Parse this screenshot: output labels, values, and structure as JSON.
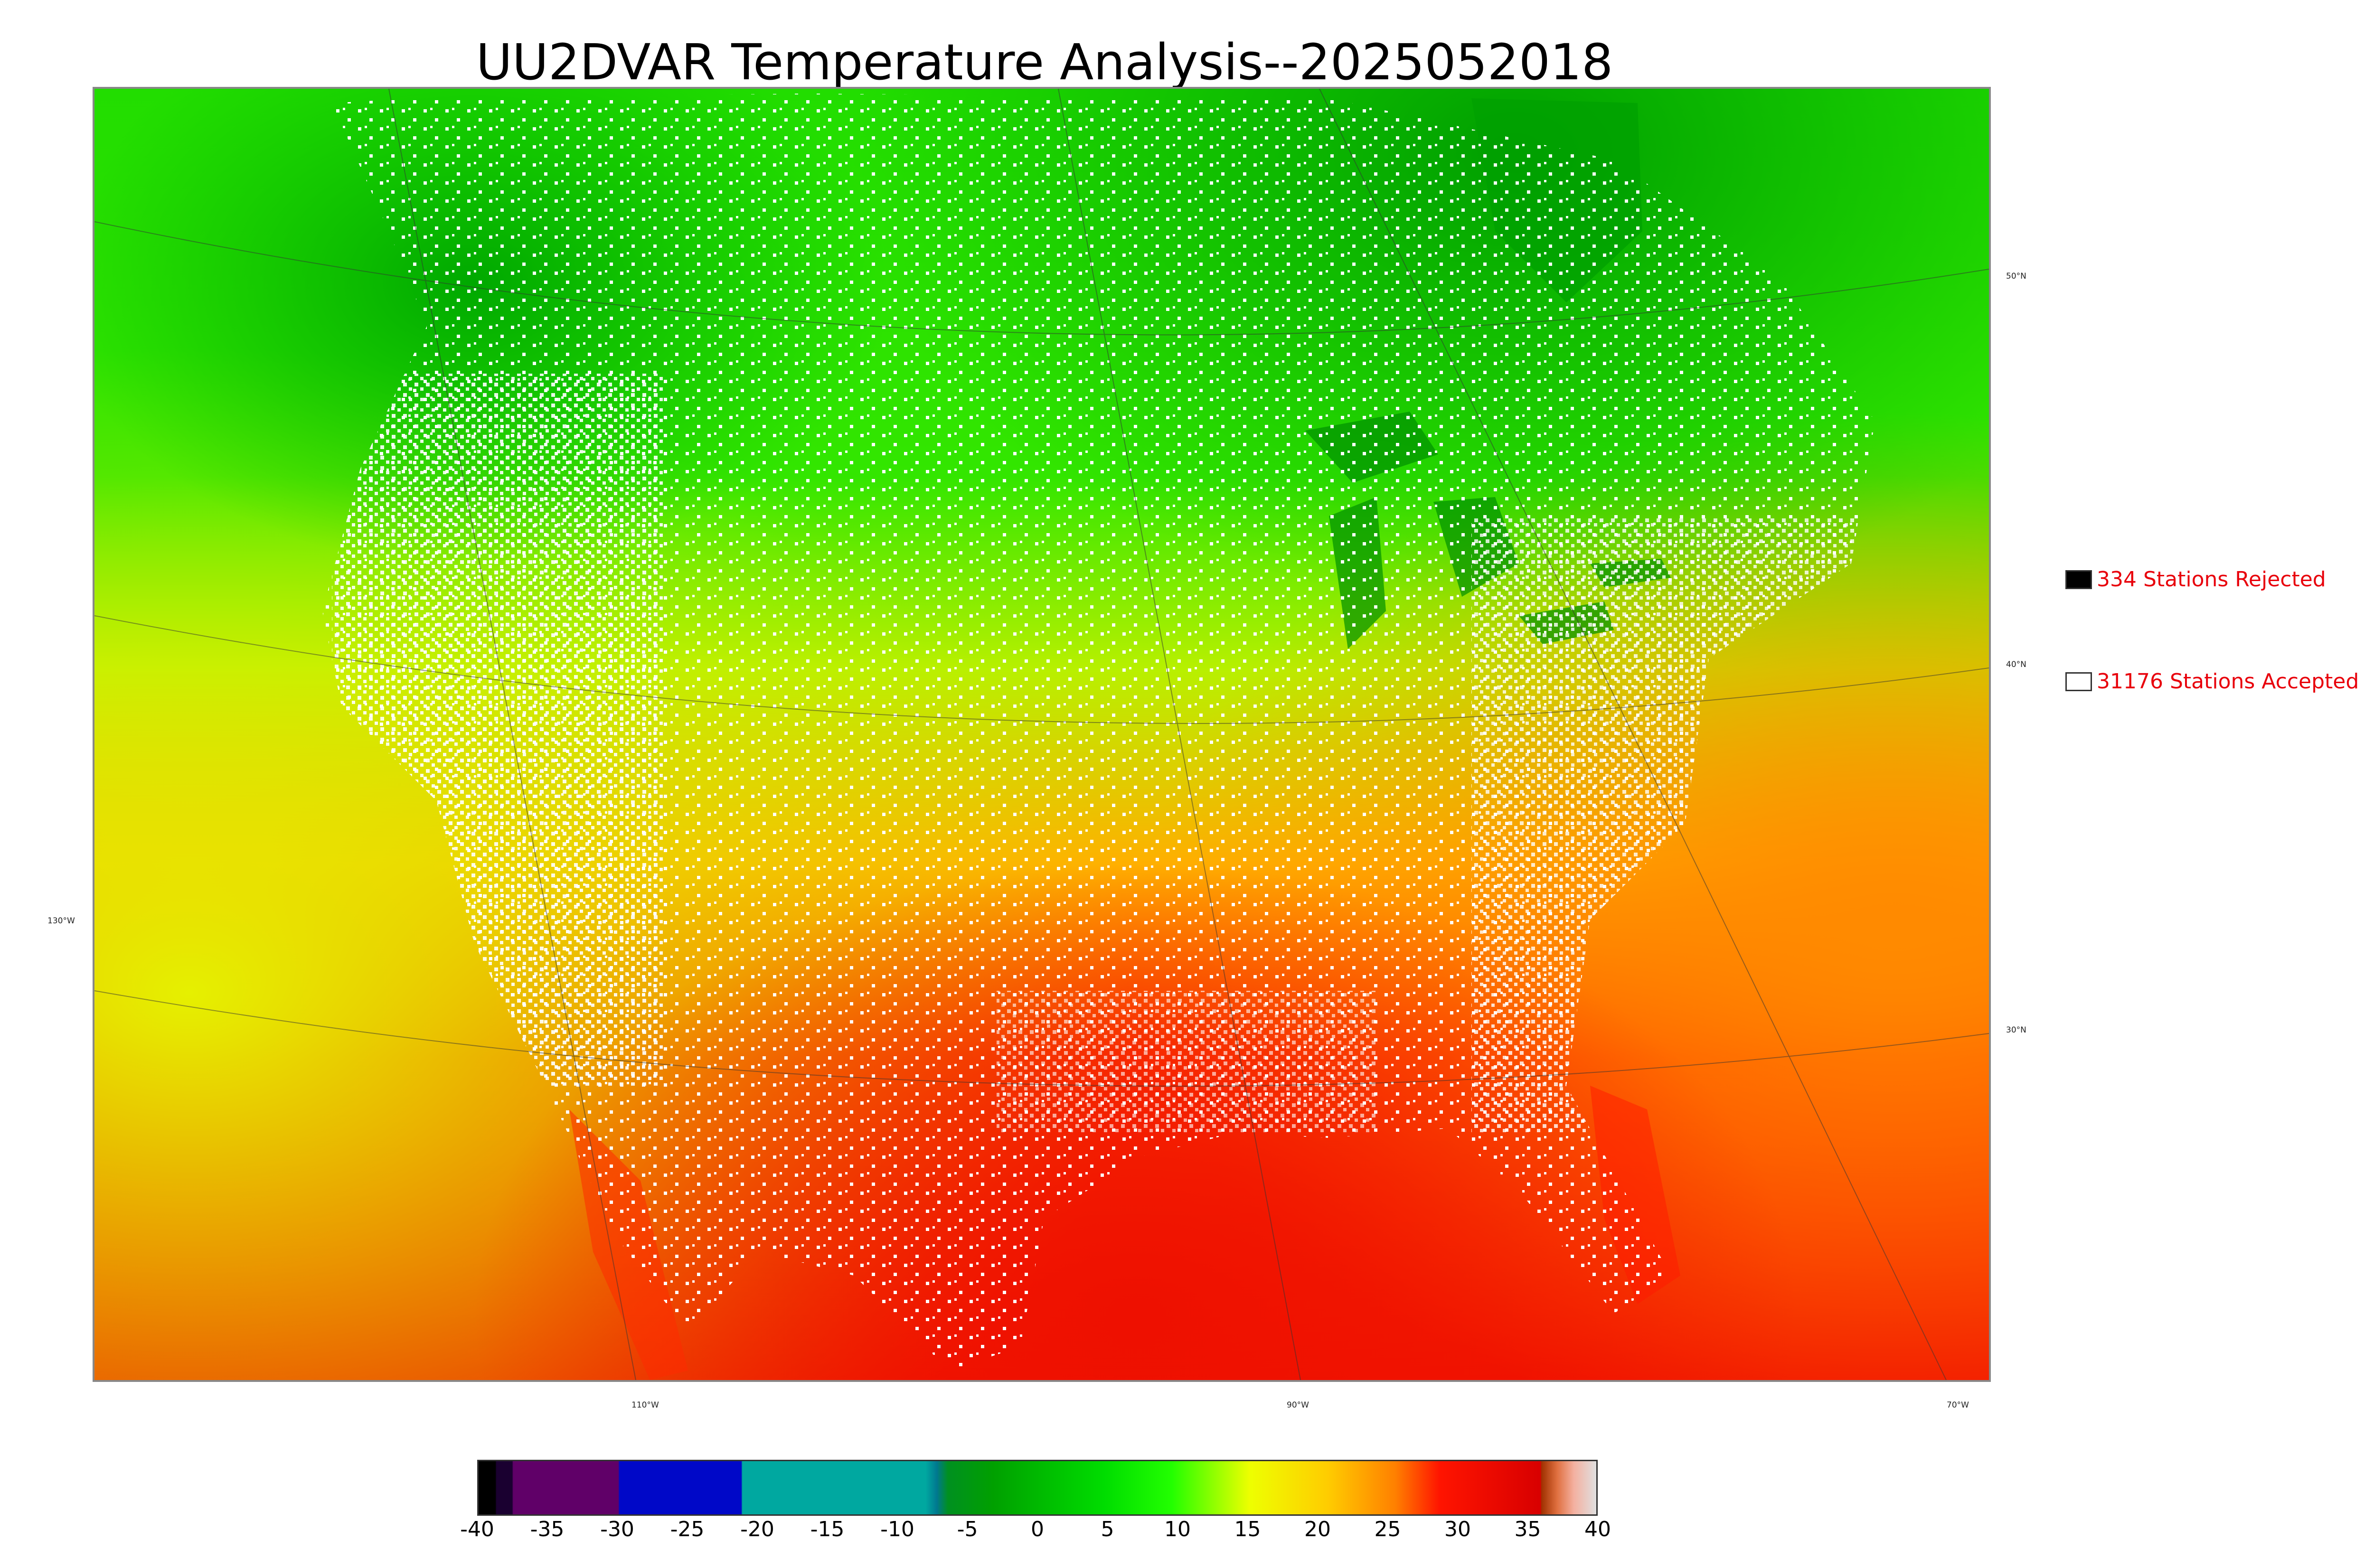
{
  "title": "UU2DVAR Temperature Analysis--2025052018",
  "map": {
    "latitude_labels": [
      "50°N",
      "40°N",
      "30°N"
    ],
    "longitude_labels": [
      "130°W",
      "110°W",
      "90°W",
      "70°W"
    ]
  },
  "legend": {
    "rejected": {
      "label": "334 Stations Rejected",
      "swatch_color": "#000000"
    },
    "accepted": {
      "label": "31176 Stations Accepted",
      "swatch_color": "#ffffff"
    }
  },
  "colorbar": {
    "ticks": [
      "-40",
      "-35",
      "-30",
      "-25",
      "-20",
      "-15",
      "-10",
      "-5",
      "0",
      "5",
      "10",
      "15",
      "20",
      "25",
      "30",
      "35",
      "40"
    ],
    "range": [
      -40,
      40
    ]
  },
  "colors": {
    "cold_green": "#00c800",
    "mild_green": "#44ee00",
    "yellow": "#ddf000",
    "orange": "#ff9a00",
    "hot_red": "#e81000",
    "label_red": "#e8000b"
  }
}
